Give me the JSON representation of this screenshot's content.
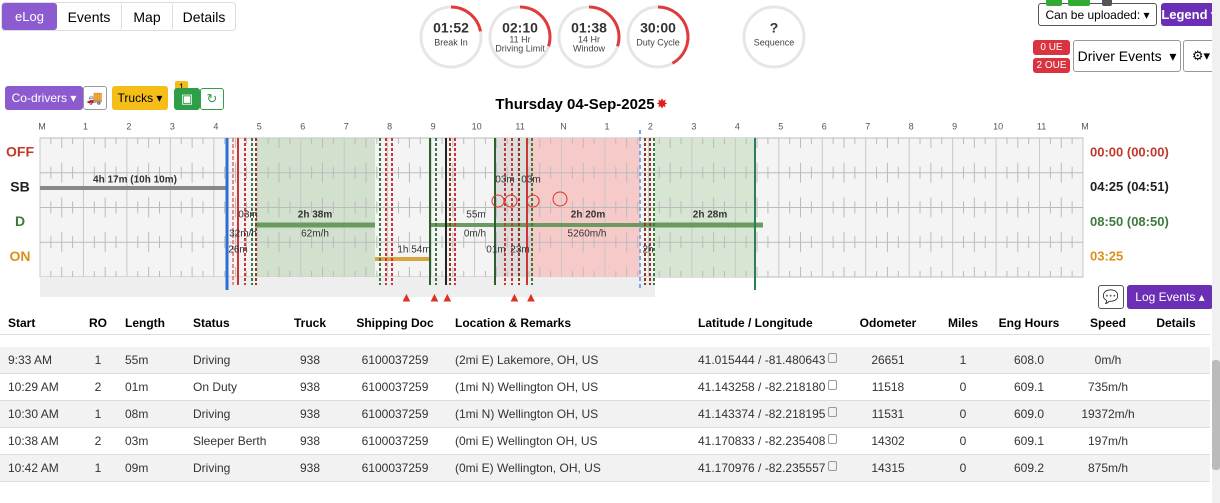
{
  "tabs": [
    "eLog",
    "Events",
    "Map",
    "Details"
  ],
  "gauges": [
    {
      "value": "01:52",
      "label": "Break In"
    },
    {
      "value": "02:10",
      "label": "11 Hr",
      "label2": "Driving Limit"
    },
    {
      "value": "01:38",
      "label": "14 Hr",
      "label2": "Window"
    },
    {
      "value": "30:00",
      "label": "Duty Cycle"
    },
    {
      "value": "?",
      "label": "Sequence"
    }
  ],
  "top_right": {
    "upload": "Can be uploaded:",
    "legend": "Legend",
    "ue": "0 UE",
    "oue": "2 OUE",
    "driver_events": "Driver Events"
  },
  "toolbar": {
    "codrivers": "Co-drivers",
    "trucks": "Trucks",
    "badge": "1"
  },
  "graph": {
    "date": "Thursday 04-Sep-2025",
    "hours": [
      "M",
      "1",
      "2",
      "3",
      "4",
      "5",
      "6",
      "7",
      "8",
      "9",
      "10",
      "11",
      "N",
      "1",
      "2",
      "3",
      "4",
      "5",
      "6",
      "7",
      "8",
      "9",
      "10",
      "11",
      "M"
    ],
    "rows": [
      {
        "label": "OFF",
        "total": "00:00 (00:00)"
      },
      {
        "label": "SB",
        "total": "04:25 (04:51)"
      },
      {
        "label": "D",
        "total": "08:50 (08:50)"
      },
      {
        "label": "ON",
        "total": "03:25"
      }
    ],
    "notes": [
      "4h 17m (10h 10m)",
      "03m",
      "32m/h",
      "26m",
      "2h 38m",
      "62m/h",
      "1h 54m",
      "55m",
      "03m",
      "03m",
      "0m/h",
      "01m",
      "23m",
      "2h 20m",
      "5260m/h",
      "2h 28m",
      "2h"
    ]
  },
  "log_events": "Log Events",
  "table": {
    "header": [
      "Start",
      "RO",
      "Length",
      "Status",
      "Truck",
      "Shipping Doc",
      "Location & Remarks",
      "Latitude / Longitude",
      "Odometer",
      "Miles",
      "Eng Hours",
      "Speed",
      "Details"
    ],
    "rows": [
      [
        "9:33 AM",
        "1",
        "55m",
        "Driving",
        "938",
        "6100037259",
        "(2mi E) Lakemore, OH, US",
        "41.015444 / -81.480643",
        "26651",
        "1",
        "608.0",
        "0m/h"
      ],
      [
        "10:29 AM",
        "2",
        "01m",
        "On Duty",
        "938",
        "6100037259",
        "(1mi N) Wellington OH, US",
        "41.143258 / -82.218180",
        "11518",
        "0",
        "609.1",
        "735m/h"
      ],
      [
        "10:30 AM",
        "1",
        "08m",
        "Driving",
        "938",
        "6100037259",
        "(1mi N) Wellington OH, US",
        "41.143374 / -82.218195",
        "11531",
        "0",
        "609.0",
        "19372m/h"
      ],
      [
        "10:38 AM",
        "2",
        "03m",
        "Sleeper Berth",
        "938",
        "6100037259",
        "(0mi E) Wellington OH, US",
        "41.170833 / -82.235408",
        "14302",
        "0",
        "609.1",
        "197m/h"
      ],
      [
        "10:42 AM",
        "1",
        "09m",
        "Driving",
        "938",
        "6100037259",
        "(0mi E) Wellington, OH, US",
        "41.170976 / -82.235557",
        "14315",
        "0",
        "609.2",
        "875m/h"
      ]
    ]
  }
}
